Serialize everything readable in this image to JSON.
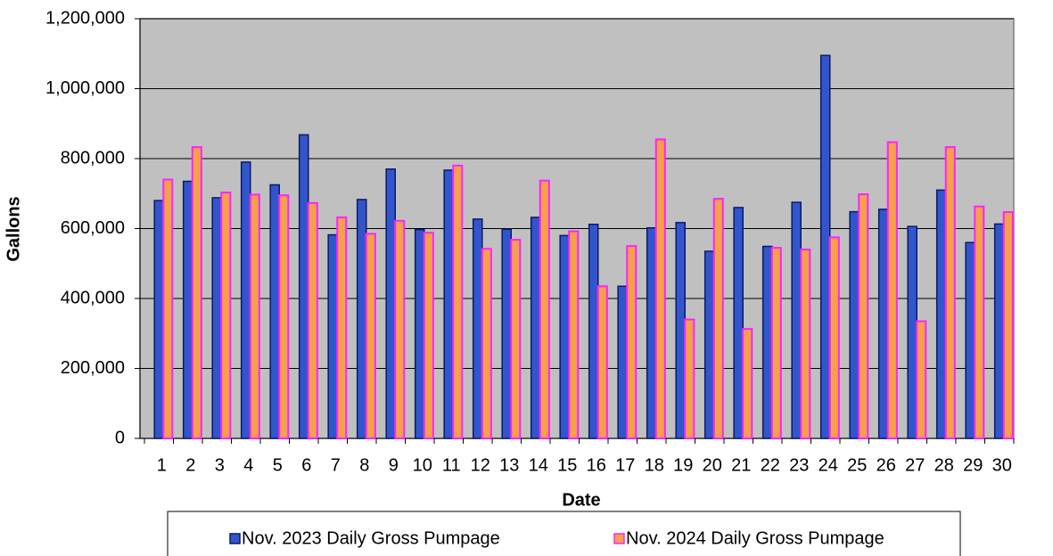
{
  "chart_data": {
    "type": "bar",
    "x_label": "Date",
    "y_label": "Gallons",
    "categories": [
      "1",
      "2",
      "3",
      "4",
      "5",
      "6",
      "7",
      "8",
      "9",
      "10",
      "11",
      "12",
      "13",
      "14",
      "15",
      "16",
      "17",
      "18",
      "19",
      "20",
      "21",
      "22",
      "23",
      "24",
      "25",
      "26",
      "27",
      "28",
      "29",
      "30"
    ],
    "series": [
      {
        "name": "Nov. 2023 Daily Gross Pumpage",
        "color": "#3355cc",
        "values": [
          680000,
          735000,
          688000,
          790000,
          725000,
          868000,
          582000,
          683000,
          770000,
          597000,
          767000,
          627000,
          598000,
          632000,
          580000,
          612000,
          435000,
          602000,
          617000,
          535000,
          660000,
          549000,
          675000,
          1095000,
          648000,
          655000,
          606000,
          710000,
          560000,
          613000
        ]
      },
      {
        "name": "Nov. 2024 Daily Gross Pumpage",
        "color": "#ff22ff",
        "values": [
          740000,
          833000,
          703000,
          697000,
          695000,
          673000,
          632000,
          585000,
          622000,
          588000,
          780000,
          542000,
          568000,
          737000,
          592000,
          435000,
          550000,
          855000,
          340000,
          685000,
          313000,
          545000,
          540000,
          575000,
          698000,
          847000,
          335000,
          833000,
          663000,
          647000
        ]
      }
    ],
    "ylim": [
      0,
      1200000
    ],
    "yticks": [
      0,
      {
        "value": 200000,
        "label": "200,000"
      },
      {
        "value": 400000,
        "label": "400,000"
      },
      {
        "value": 600000,
        "label": "600,000"
      },
      {
        "value": 800000,
        "label": "800,000"
      },
      {
        "value": 1000000,
        "label": "1,000,000"
      },
      {
        "value": 1200000,
        "label": "1,200,000"
      }
    ],
    "grid": true,
    "legend": "bottom"
  }
}
